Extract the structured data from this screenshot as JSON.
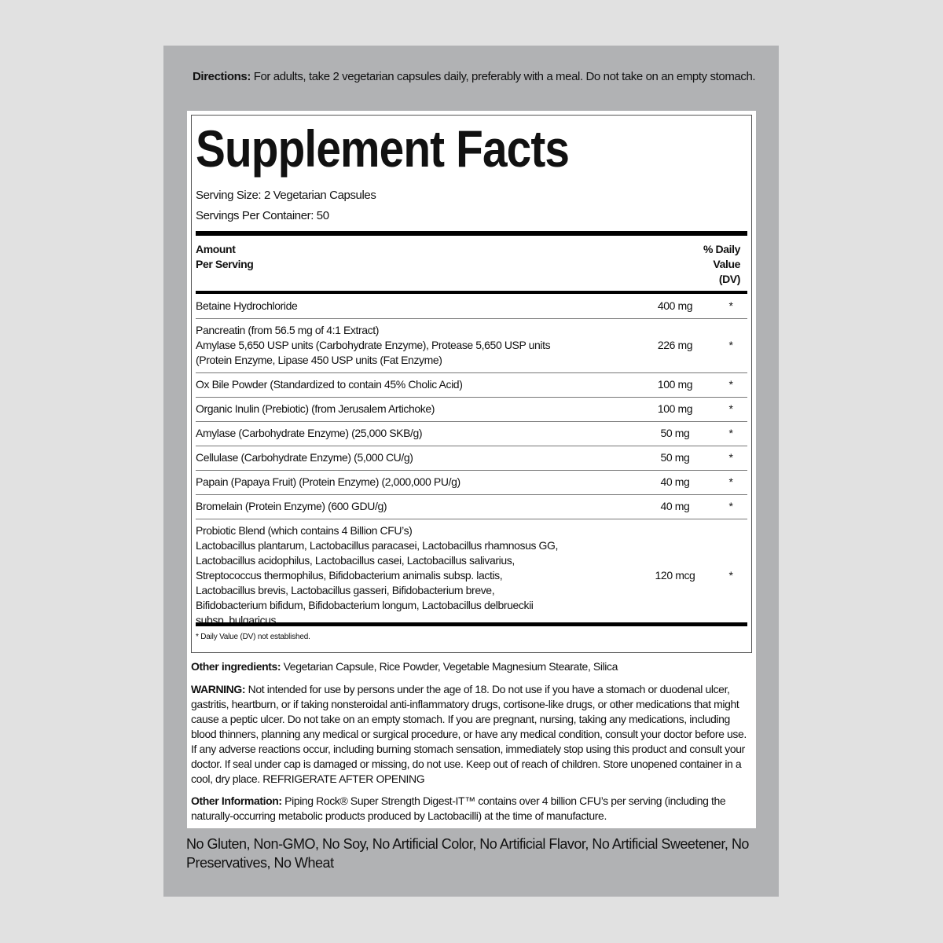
{
  "directions": {
    "label": "Directions:",
    "text": " For adults, take 2 vegetarian capsules daily, preferably with a meal. Do not take on an empty stomach."
  },
  "facts": {
    "title": "Supplement Facts",
    "serving_size": "Serving Size: 2 Vegetarian Capsules",
    "servings_per_container": "Servings Per Container: 50",
    "header_left": [
      "Amount",
      "Per Serving"
    ],
    "header_right": [
      "% Daily",
      "Value",
      "(DV)"
    ],
    "rows": [
      {
        "lines": [
          "Betaine Hydrochloride"
        ],
        "amount": "400 mg",
        "dv": "*"
      },
      {
        "lines": [
          "Pancreatin (from 56.5 mg of 4:1 Extract)",
          "Amylase 5,650 USP units (Carbohydrate Enzyme), Protease 5,650 USP units",
          "(Protein Enzyme, Lipase 450 USP units (Fat Enzyme)"
        ],
        "amount": "226 mg",
        "dv": "*"
      },
      {
        "lines": [
          "Ox Bile Powder (Standardized to contain 45% Cholic Acid)"
        ],
        "amount": "100 mg",
        "dv": "*"
      },
      {
        "lines": [
          "Organic Inulin (Prebiotic) (from Jerusalem Artichoke)"
        ],
        "amount": "100 mg",
        "dv": "*"
      },
      {
        "lines": [
          "Amylase (Carbohydrate Enzyme) (25,000 SKB/g)"
        ],
        "amount": "50 mg",
        "dv": "*"
      },
      {
        "lines": [
          "Cellulase (Carbohydrate Enzyme) (5,000 CU/g)"
        ],
        "amount": "50 mg",
        "dv": "*"
      },
      {
        "lines": [
          "Papain (Papaya Fruit) (Protein Enzyme) (2,000,000 PU/g)"
        ],
        "amount": "40 mg",
        "dv": "*"
      },
      {
        "lines": [
          "Bromelain (Protein Enzyme) (600 GDU/g)"
        ],
        "amount": "40 mg",
        "dv": "*"
      },
      {
        "lines": [
          "Probiotic Blend (which contains 4 Billion CFU’s)",
          "Lactobacillus plantarum, Lactobacillus paracasei, Lactobacillus rhamnosus GG,",
          "Lactobacillus acidophilus, Lactobacillus casei, Lactobacillus salivarius,",
          "Streptococcus thermophilus, Bifidobacterium animalis subsp. lactis,",
          "Lactobacillus brevis, Lactobacillus gasseri, Bifidobacterium breve,",
          "Bifidobacterium bifidum, Bifidobacterium longum, Lactobacillus delbrueckii",
          "subsp. bulgaricus"
        ],
        "amount": "120 mcg",
        "dv": "*"
      }
    ],
    "footnote": "* Daily Value (DV) not established."
  },
  "other_ingredients": {
    "label": "Other ingredients:",
    "text": " Vegetarian Capsule, Rice Powder, Vegetable Magnesium Stearate, Silica"
  },
  "warning": {
    "label": "WARNING:",
    "text": " Not intended for use by persons under the age of 18. Do not use if you have a stomach or duodenal ulcer, gastritis, heartburn, or if taking nonsteroidal anti-inflammatory drugs, cortisone-like drugs, or other medications that might cause a peptic ulcer. Do not take on an empty stomach. If you are pregnant, nursing, taking any medications, including blood thinners, planning any medical or surgical procedure, or have any medical condition, consult your doctor before use. If any adverse reactions occur, including burning stomach sensation, immediately stop using this product and consult your doctor. If seal under cap is damaged or missing, do not use. Keep out of reach of children. Store unopened container in a cool, dry place. REFRIGERATE AFTER OPENING"
  },
  "other_information": {
    "label": "Other Information:",
    "text": " Piping Rock® Super Strength Digest-IT™ contains over 4 billion CFU’s per serving (including the naturally-occurring metabolic products produced by Lactobacilli) at the time of manufacture."
  },
  "claims": "No Gluten, Non-GMO, No Soy, No Artificial Color, No Artificial Flavor, No Artificial Sweetener, No Preservatives, No Wheat",
  "colors": {
    "page_bg": "#e1e1e1",
    "panel_bg": "#b1b2b4",
    "label_bg": "#ffffff",
    "text": "#111111"
  }
}
